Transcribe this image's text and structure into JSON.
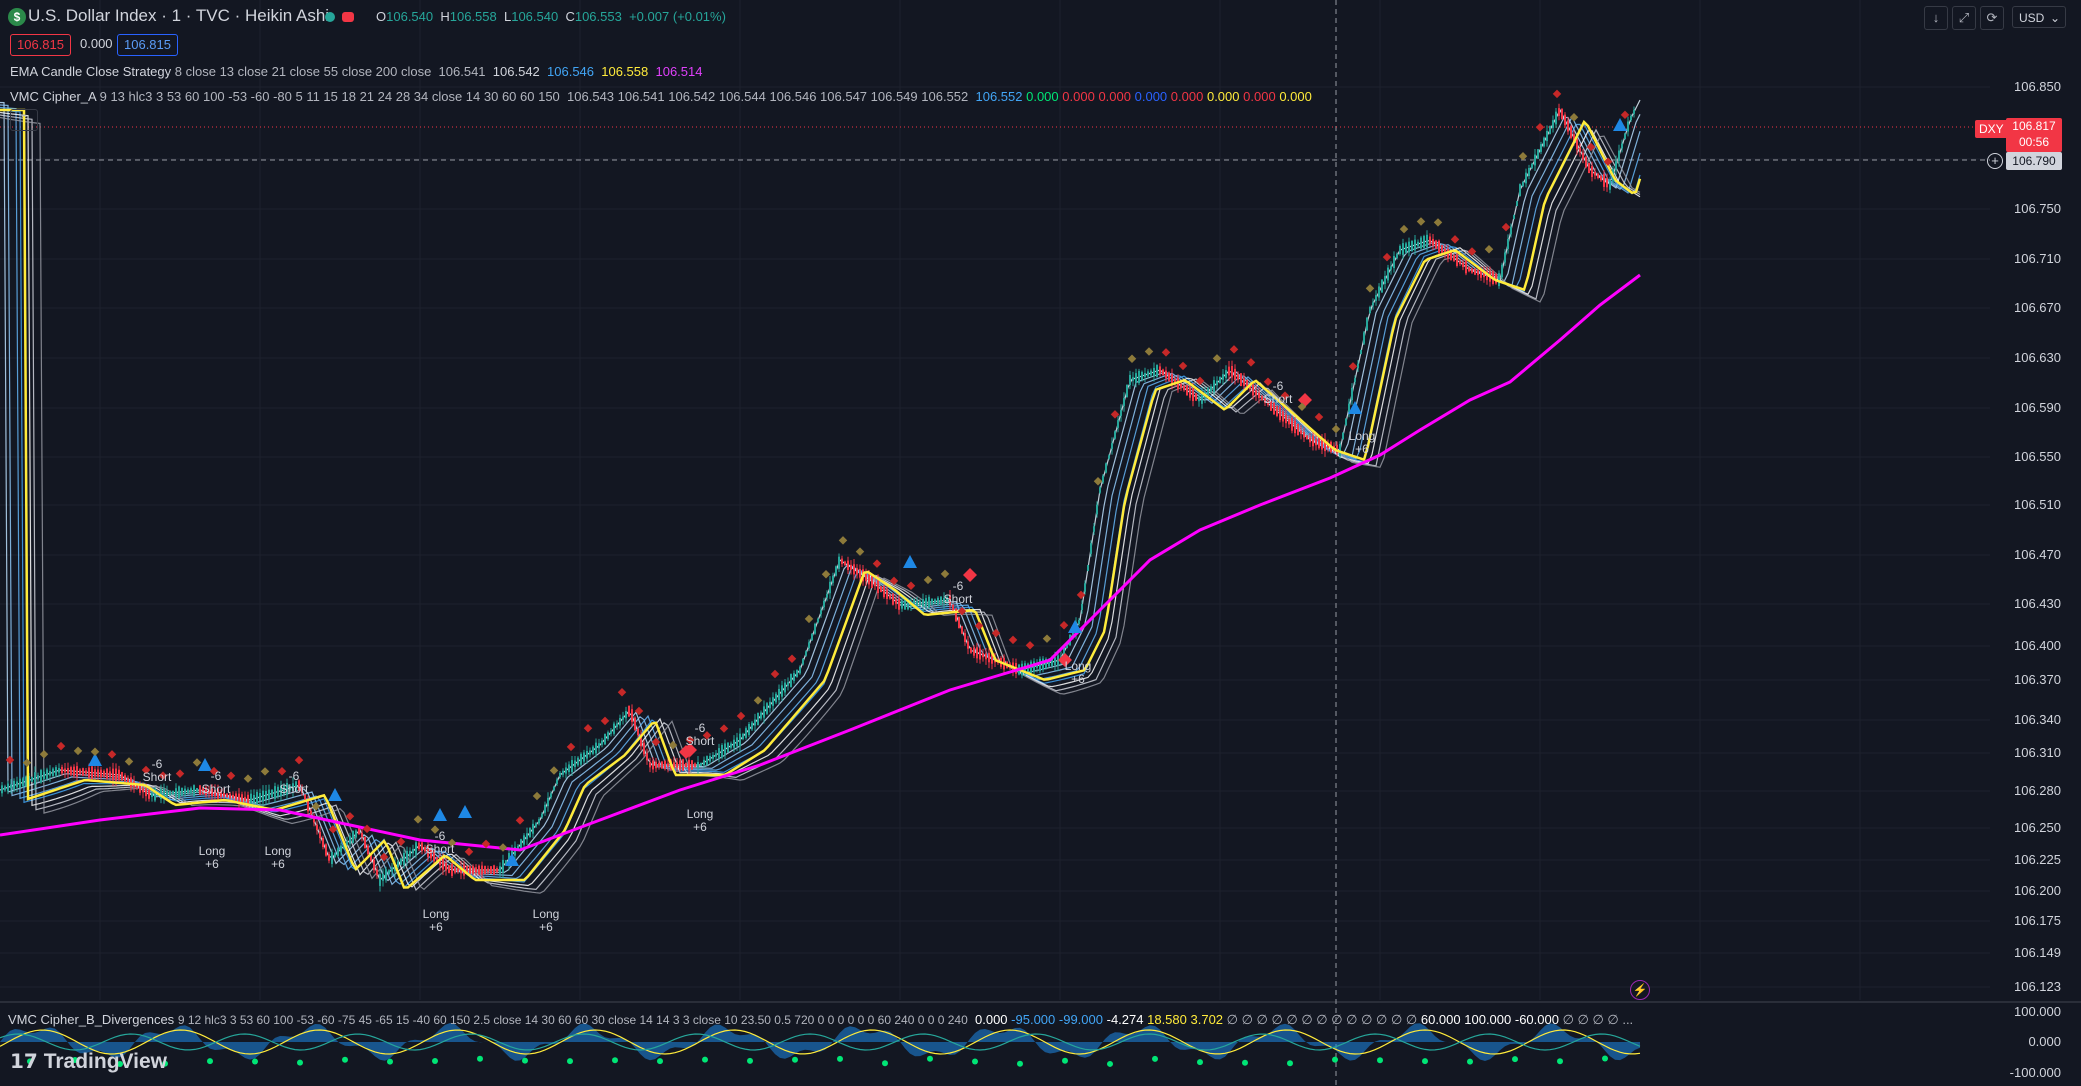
{
  "header": {
    "symbol_icon": "$",
    "title": "U.S. Dollar Index · 1 · TVC · Heikin Ashi",
    "ohlc": {
      "o_label": "O",
      "o": "106.540",
      "h_label": "H",
      "h": "106.558",
      "l_label": "L",
      "l": "106.540",
      "c_label": "C",
      "c": "106.553",
      "change": "+0.007 (+0.01%)"
    },
    "bid": "106.815",
    "spread": "0.000",
    "ask": "106.815",
    "currency": "USD"
  },
  "indicators": {
    "ema": {
      "name": "EMA Candle Close Strategy",
      "params": "8 close 13 close 21 close 55 close 200 close",
      "v1": "106.541",
      "v2": "106.542",
      "v3": "106.546",
      "v4": "106.558",
      "v5": "106.514"
    },
    "vmc_a": {
      "name": "VMC Cipher_A",
      "params": "9 13 hlc3 3 53 60 100 -53 -60 -80 5 11 15 18 21 24 28 34 close 14 30 60 60 150",
      "values": "106.543  106.541  106.542  106.544  106.546  106.547  106.549  106.552",
      "v_blue": "106.552",
      "v_g": "0.000",
      "v_r1": "0.000",
      "v_r2": "0.000",
      "v_b": "0.000",
      "v_r3": "0.000",
      "v_y": "0.000",
      "v_r4": "0.000",
      "v_y2": "0.000"
    },
    "vmc_b": {
      "name": "VMC Cipher_B_Divergences",
      "params": "9 12 hlc3 3 53 60 100 -53 -60 -75 45 -65 15 -40 60 150 2.5 close 14 30 60 60 30 close 14 14 3 3 close 10 23.50 0.5 720 0 0 0 0 0 0 60 240 0 0 0 240",
      "v1": "0.000",
      "v2": "-95.000",
      "v3": "-99.000",
      "v4": "-4.274",
      "v5": "18.580",
      "v6": "3.702",
      "v7": "∅ ∅ ∅ ∅ ∅ ∅ ∅ ∅ ∅ ∅ ∅ ∅ ∅",
      "v8": "60.000",
      "v9": "100.000",
      "v10": "-60.000",
      "v11": "∅ ∅ ∅ ∅ ..."
    }
  },
  "price_axis": [
    "106.850",
    "106.790",
    "106.750",
    "106.710",
    "106.670",
    "106.630",
    "106.590",
    "106.550",
    "106.510",
    "106.470",
    "106.430",
    "106.400",
    "106.370",
    "106.340",
    "106.310",
    "106.280",
    "106.250",
    "106.225",
    "106.200",
    "106.175",
    "106.149",
    "106.123"
  ],
  "osc_axis": [
    "100.000",
    "0.000",
    "-100.000"
  ],
  "last_price_tag": {
    "symbol": "DXY",
    "price": "106.817",
    "countdown": "00:56"
  },
  "crosshair_price": "106.790",
  "signals": [
    {
      "text1": "-6",
      "text2": "Short"
    },
    {
      "text1": "-6",
      "text2": "Short"
    },
    {
      "text1": "-6",
      "text2": "Short"
    },
    {
      "text1": "Long",
      "text2": "+6"
    },
    {
      "text1": "Long",
      "text2": "+6"
    },
    {
      "text1": "-6",
      "text2": "Short"
    },
    {
      "text1": "Long",
      "text2": "+6"
    },
    {
      "text1": "Long",
      "text2": "+6"
    },
    {
      "text1": "-6",
      "text2": "Short"
    },
    {
      "text1": "Long",
      "text2": "+6"
    },
    {
      "text1": "-6",
      "text2": "Short"
    },
    {
      "text1": "Long",
      "text2": "+6"
    },
    {
      "text1": "-6",
      "text2": "Short"
    },
    {
      "text1": "Long",
      "text2": "+6"
    }
  ],
  "brand": "TradingView",
  "colors": {
    "bg": "#131722",
    "ema200": "#ff00ff",
    "ema55": "#ffeb3b",
    "up": "#26a69a",
    "down": "#f23645",
    "ribbon": "#64b5f6"
  }
}
